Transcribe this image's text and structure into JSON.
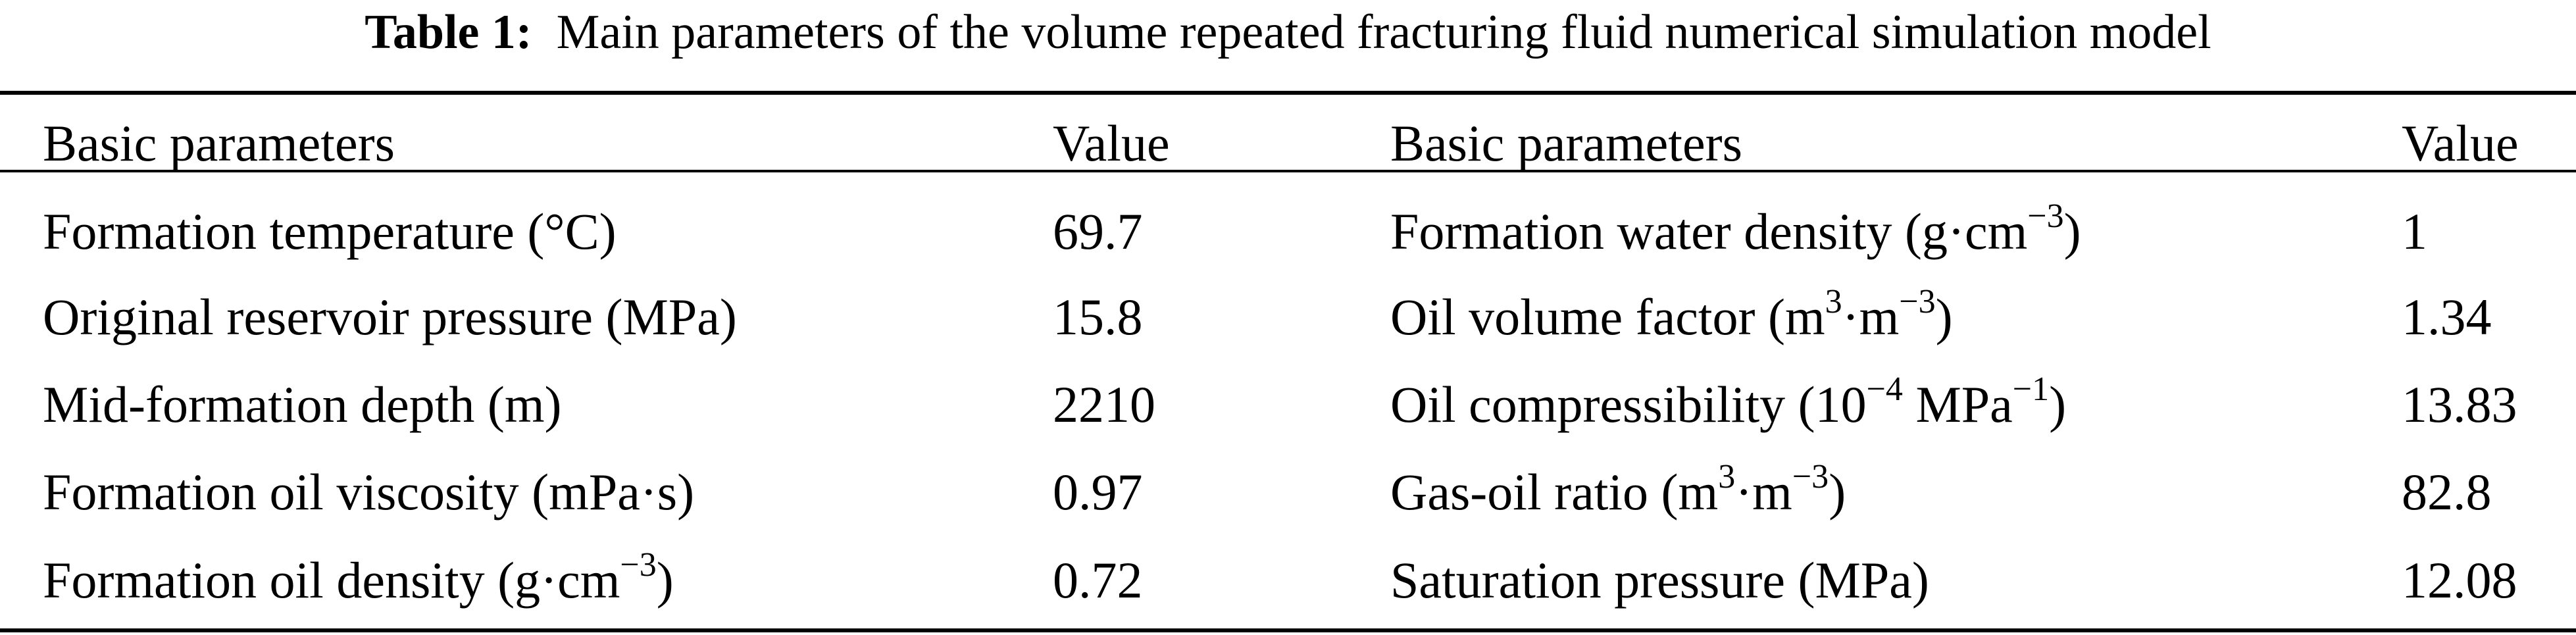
{
  "caption": {
    "label": "Table 1:",
    "text": "Main parameters of the volume repeated fracturing fluid numerical simulation model"
  },
  "headers": {
    "col1": "Basic parameters",
    "col2": "Value",
    "col3": "Basic parameters",
    "col4": "Value"
  },
  "rows": [
    {
      "left_param": "Formation temperature (°C)",
      "left_value": "69.7",
      "right_param": {
        "before": "Formation water density (g·cm",
        "sup": "−3",
        "after": ")"
      },
      "right_value": "1"
    },
    {
      "left_param": "Original reservoir pressure (MPa)",
      "left_value": "15.8",
      "right_param": {
        "before": "Oil volume factor (m",
        "sup": "3",
        "mid": "·m",
        "sup2": "−3",
        "after": ")"
      },
      "right_value": "1.34"
    },
    {
      "left_param": "Mid-formation depth (m)",
      "left_value": "2210",
      "right_param": {
        "before": "Oil compressibility (10",
        "sup": "−4",
        "mid": " MPa",
        "sup2": "−1",
        "after": ")"
      },
      "right_value": "13.83"
    },
    {
      "left_param": "Formation oil viscosity (mPa·s)",
      "left_value": "0.97",
      "right_param": {
        "before": "Gas-oil ratio (m",
        "sup": "3",
        "mid": "·m",
        "sup2": "−3",
        "after": ")"
      },
      "right_value": "82.8"
    },
    {
      "left_param": {
        "before": "Formation oil density (g·cm",
        "sup": "−3",
        "after": ")"
      },
      "left_value": "0.72",
      "right_param": "Saturation pressure (MPa)",
      "right_value": "12.08"
    }
  ]
}
